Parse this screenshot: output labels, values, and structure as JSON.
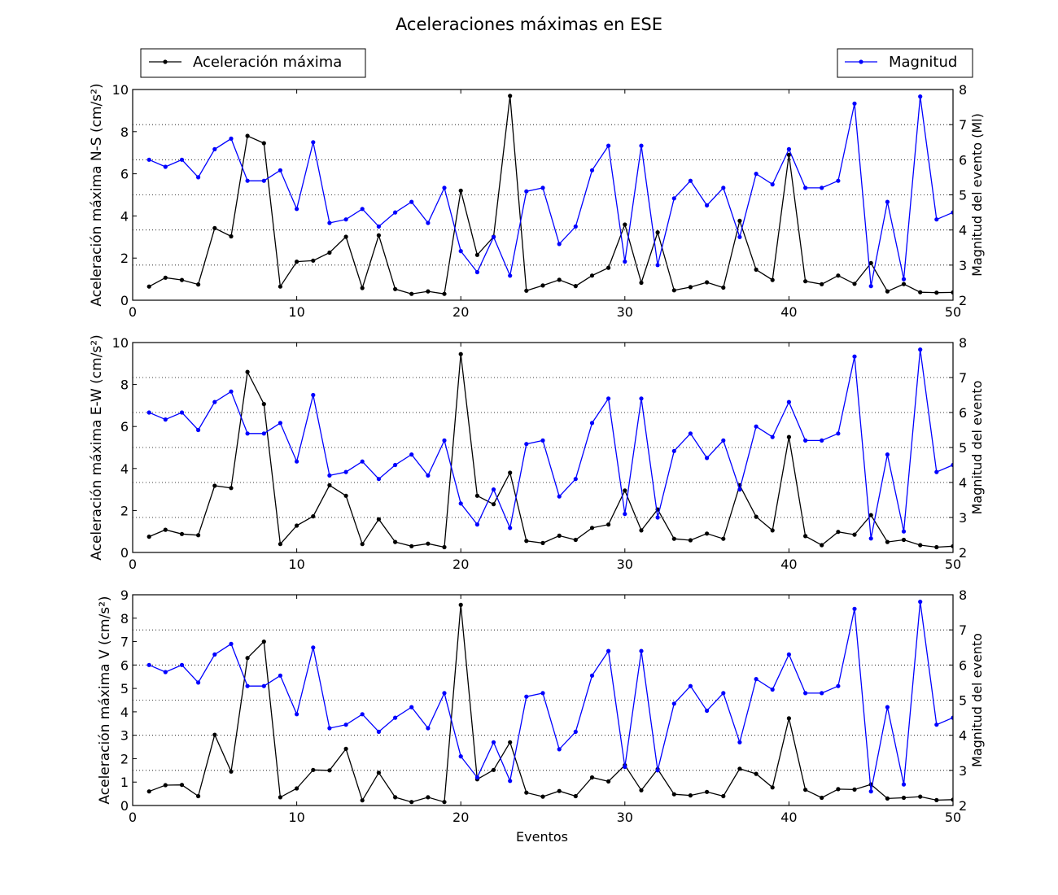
{
  "figure": {
    "title": "Aceleraciones máximas en ESE",
    "xlabel": "Eventos",
    "legend": [
      {
        "label": "Aceleración máxima",
        "color": "#000000"
      },
      {
        "label": "Magnitud",
        "color": "#0000ff"
      }
    ]
  },
  "chart_data": [
    {
      "type": "line",
      "ylabel": "Aceleración máxima N-S (cm/s²)",
      "y2label": "Magnitud del evento (Ml)",
      "xlim": [
        0,
        50
      ],
      "ylim": [
        0,
        10
      ],
      "y2lim": [
        2,
        8
      ],
      "xticks": [
        0,
        10,
        20,
        30,
        40,
        50
      ],
      "yticks": [
        0,
        2,
        4,
        6,
        8,
        10
      ],
      "y2ticks": [
        2,
        3,
        4,
        5,
        6,
        7,
        8
      ],
      "x": [
        1,
        2,
        3,
        4,
        5,
        6,
        7,
        8,
        9,
        10,
        11,
        12,
        13,
        14,
        15,
        16,
        17,
        18,
        19,
        20,
        21,
        22,
        23,
        24,
        25,
        26,
        27,
        28,
        29,
        30,
        31,
        32,
        33,
        34,
        35,
        36,
        37,
        38,
        39,
        40,
        41,
        42,
        43,
        44,
        45,
        46,
        47,
        48,
        49,
        50
      ],
      "series": [
        {
          "name": "Aceleración máxima",
          "axis": "left",
          "color": "#000000",
          "values": [
            0.65,
            1.07,
            0.96,
            0.75,
            3.42,
            3.03,
            7.8,
            7.45,
            0.65,
            1.83,
            1.88,
            2.26,
            3.01,
            0.58,
            3.08,
            0.53,
            0.3,
            0.42,
            0.3,
            5.2,
            2.15,
            3.01,
            9.7,
            0.45,
            0.7,
            0.97,
            0.67,
            1.17,
            1.54,
            3.59,
            0.83,
            3.22,
            0.47,
            0.62,
            0.85,
            0.6,
            3.77,
            1.45,
            0.96,
            6.9,
            0.9,
            0.76,
            1.17,
            0.78,
            1.76,
            0.42,
            0.77,
            0.38,
            0.36,
            0.37
          ]
        },
        {
          "name": "Magnitud",
          "axis": "right",
          "color": "#0000ff",
          "values": [
            6.0,
            5.8,
            6.0,
            5.5,
            6.3,
            6.6,
            5.4,
            5.4,
            5.7,
            4.6,
            6.5,
            4.2,
            4.3,
            4.6,
            4.1,
            4.5,
            4.8,
            4.2,
            5.2,
            3.4,
            2.8,
            3.8,
            2.7,
            5.1,
            5.2,
            3.6,
            4.1,
            5.7,
            6.4,
            3.1,
            6.4,
            3.0,
            4.9,
            5.4,
            4.7,
            5.2,
            3.8,
            5.6,
            5.3,
            6.3,
            5.2,
            5.2,
            5.4,
            7.6,
            2.4,
            4.8,
            2.6,
            7.8,
            4.3,
            4.5
          ]
        }
      ]
    },
    {
      "type": "line",
      "ylabel": "Aceleración máxima E-W (cm/s²)",
      "y2label": "Magnitud del evento",
      "xlim": [
        0,
        50
      ],
      "ylim": [
        0,
        10
      ],
      "y2lim": [
        2,
        8
      ],
      "xticks": [
        0,
        10,
        20,
        30,
        40,
        50
      ],
      "yticks": [
        0,
        2,
        4,
        6,
        8,
        10
      ],
      "y2ticks": [
        2,
        3,
        4,
        5,
        6,
        7,
        8
      ],
      "x": [
        1,
        2,
        3,
        4,
        5,
        6,
        7,
        8,
        9,
        10,
        11,
        12,
        13,
        14,
        15,
        16,
        17,
        18,
        19,
        20,
        21,
        22,
        23,
        24,
        25,
        26,
        27,
        28,
        29,
        30,
        31,
        32,
        33,
        34,
        35,
        36,
        37,
        38,
        39,
        40,
        41,
        42,
        43,
        44,
        45,
        46,
        47,
        48,
        49,
        50
      ],
      "series": [
        {
          "name": "Aceleración máxima",
          "axis": "left",
          "color": "#000000",
          "values": [
            0.75,
            1.08,
            0.88,
            0.82,
            3.18,
            3.07,
            8.6,
            7.07,
            0.4,
            1.28,
            1.72,
            3.2,
            2.7,
            0.4,
            1.58,
            0.5,
            0.3,
            0.42,
            0.25,
            9.45,
            2.7,
            2.3,
            3.8,
            0.55,
            0.45,
            0.8,
            0.6,
            1.17,
            1.33,
            2.95,
            1.05,
            2.05,
            0.65,
            0.58,
            0.9,
            0.65,
            3.2,
            1.7,
            1.05,
            5.5,
            0.78,
            0.35,
            0.98,
            0.85,
            1.78,
            0.5,
            0.6,
            0.35,
            0.25,
            0.3
          ]
        },
        {
          "name": "Magnitud",
          "axis": "right",
          "color": "#0000ff",
          "values": [
            6.0,
            5.8,
            6.0,
            5.5,
            6.3,
            6.6,
            5.4,
            5.4,
            5.7,
            4.6,
            6.5,
            4.2,
            4.3,
            4.6,
            4.1,
            4.5,
            4.8,
            4.2,
            5.2,
            3.4,
            2.8,
            3.8,
            2.7,
            5.1,
            5.2,
            3.6,
            4.1,
            5.7,
            6.4,
            3.1,
            6.4,
            3.0,
            4.9,
            5.4,
            4.7,
            5.2,
            3.8,
            5.6,
            5.3,
            6.3,
            5.2,
            5.2,
            5.4,
            7.6,
            2.4,
            4.8,
            2.6,
            7.8,
            4.3,
            4.5
          ]
        }
      ]
    },
    {
      "type": "line",
      "ylabel": "Aceleración máxima V (cm/s²)",
      "y2label": "Magnitud del evento",
      "xlabel": "Eventos",
      "xlim": [
        0,
        50
      ],
      "ylim": [
        0,
        9
      ],
      "y2lim": [
        2,
        8
      ],
      "xticks": [
        0,
        10,
        20,
        30,
        40,
        50
      ],
      "yticks": [
        0,
        1,
        2,
        3,
        4,
        5,
        6,
        7,
        8,
        9
      ],
      "y2ticks": [
        2,
        3,
        4,
        5,
        6,
        7,
        8
      ],
      "x": [
        1,
        2,
        3,
        4,
        5,
        6,
        7,
        8,
        9,
        10,
        11,
        12,
        13,
        14,
        15,
        16,
        17,
        18,
        19,
        20,
        21,
        22,
        23,
        24,
        25,
        26,
        27,
        28,
        29,
        30,
        31,
        32,
        33,
        34,
        35,
        36,
        37,
        38,
        39,
        40,
        41,
        42,
        43,
        44,
        45,
        46,
        47,
        48,
        49,
        50
      ],
      "series": [
        {
          "name": "Aceleración máxima",
          "axis": "left",
          "color": "#000000",
          "values": [
            0.6,
            0.87,
            0.88,
            0.4,
            3.02,
            1.45,
            6.3,
            7.0,
            0.35,
            0.73,
            1.52,
            1.5,
            2.42,
            0.22,
            1.4,
            0.35,
            0.15,
            0.35,
            0.15,
            8.57,
            1.12,
            1.52,
            2.7,
            0.55,
            0.38,
            0.62,
            0.4,
            1.2,
            1.03,
            1.72,
            0.65,
            1.55,
            0.48,
            0.43,
            0.58,
            0.4,
            1.57,
            1.35,
            0.77,
            3.72,
            0.67,
            0.33,
            0.7,
            0.68,
            0.9,
            0.3,
            0.33,
            0.38,
            0.23,
            0.25
          ]
        },
        {
          "name": "Magnitud",
          "axis": "right",
          "color": "#0000ff",
          "values": [
            6.0,
            5.8,
            6.0,
            5.5,
            6.3,
            6.6,
            5.4,
            5.4,
            5.7,
            4.6,
            6.5,
            4.2,
            4.3,
            4.6,
            4.1,
            4.5,
            4.8,
            4.2,
            5.2,
            3.4,
            2.8,
            3.8,
            2.7,
            5.1,
            5.2,
            3.6,
            4.1,
            5.7,
            6.4,
            3.1,
            6.4,
            3.0,
            4.9,
            5.4,
            4.7,
            5.2,
            3.8,
            5.6,
            5.3,
            6.3,
            5.2,
            5.2,
            5.4,
            7.6,
            2.4,
            4.8,
            2.6,
            7.8,
            4.3,
            4.5
          ]
        }
      ]
    }
  ]
}
